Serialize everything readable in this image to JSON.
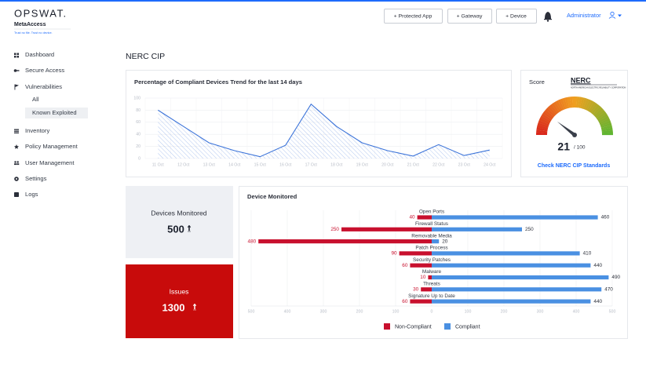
{
  "header": {
    "logo": "OPSWAT.",
    "product": "MetaAccess",
    "tagline": "Trust no file. Trust no device.",
    "buttons": [
      "+ Protected App",
      "+ Gateway",
      "+ Device"
    ],
    "user": "Administrator"
  },
  "sidebar": {
    "items": [
      "Dashboard",
      "Secure Access",
      "Vulnerabilities",
      "All",
      "Known Exploited",
      "Inventory",
      "Policy Management",
      "User Management",
      "Settings",
      "Logs"
    ]
  },
  "page_title": "NERC CIP",
  "trend_chart": {
    "type": "line",
    "title": "Percentage of Compliant Devices Trend for the last 14 days",
    "categories": [
      "11 Oct",
      "12 Oct",
      "13 Oct",
      "14 Oct",
      "15 Oct",
      "16 Oct",
      "17 Oct",
      "18 Oct",
      "19 Oct",
      "20 Oct",
      "21 Oct",
      "22 Oct",
      "23 Oct",
      "24 Oct"
    ],
    "values": [
      80,
      53,
      26,
      13,
      3,
      22,
      90,
      53,
      26,
      13,
      4,
      23,
      5,
      14
    ],
    "color": "#3b73d9",
    "ylim": [
      0,
      100
    ],
    "yticks": [
      0,
      20,
      40,
      60,
      80,
      100
    ],
    "grid": true
  },
  "score": {
    "title": "Score",
    "logo": "NERC",
    "logo_subtitle": "NORTH AMERICAN ELECTRIC RELIABILITY CORPORATION",
    "value": 21,
    "max": {
      "value": 100,
      "label": "/ 100"
    },
    "link": "Check NERC CIP Standards"
  },
  "stats": [
    {
      "title": "Devices Monitored",
      "value": 500
    },
    {
      "title": "Issues",
      "value": 1300
    }
  ],
  "device_chart": {
    "type": "bar",
    "orientation": "horizontal",
    "diverging": true,
    "title": "Device Monitored",
    "categories": [
      "Open Ports",
      "Firewall Status",
      "Removable Media",
      "Patch Process",
      "Security Patches",
      "Malware",
      "Threats",
      "Signature Up to Date"
    ],
    "series": [
      {
        "name": "Non-Compliant",
        "color": "#c8102e",
        "values": [
          40,
          250,
          480,
          90,
          60,
          10,
          30,
          60
        ]
      },
      {
        "name": "Compliant",
        "color": "#4a90e2",
        "values": [
          460,
          250,
          20,
          410,
          440,
          490,
          470,
          440
        ]
      }
    ],
    "xlim": [
      -500,
      500
    ],
    "xticks": [
      {
        "value": -500,
        "label": "500"
      },
      {
        "value": -400,
        "label": "400"
      },
      {
        "value": -300,
        "label": "300"
      },
      {
        "value": -200,
        "label": "200"
      },
      {
        "value": -100,
        "label": "100"
      },
      0,
      100,
      200,
      300,
      400,
      500
    ],
    "grid": true,
    "legend": "bottom"
  }
}
